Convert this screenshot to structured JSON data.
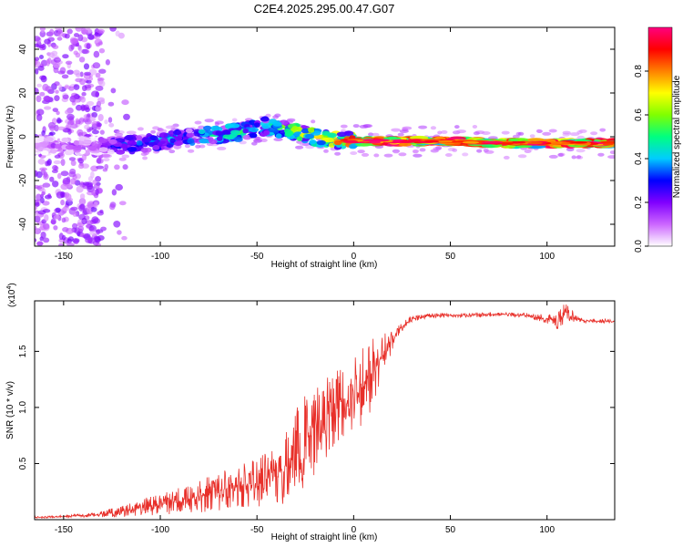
{
  "title": "C2E4.2025.295.00.47.G07",
  "chart_data": [
    {
      "type": "heatmap",
      "title": "C2E4.2025.295.00.47.G07",
      "xlabel": "Height of straight line (km)",
      "ylabel": "Frequency (Hz)",
      "xlim": [
        -165,
        135
      ],
      "ylim": [
        -50,
        50
      ],
      "xticks": [
        -150,
        -100,
        -50,
        0,
        50,
        100
      ],
      "yticks": [
        -40,
        -20,
        0,
        20,
        40
      ],
      "ridge": {
        "x": [
          -160,
          -140,
          -130,
          -120,
          -100,
          -80,
          -60,
          -45,
          -35,
          -25,
          -15,
          0,
          20,
          50,
          80,
          100,
          135
        ],
        "hz": [
          -4,
          -4,
          -4,
          -4,
          -2,
          0,
          2,
          5,
          3,
          1,
          -1,
          -2,
          -2,
          -2,
          -3,
          -3,
          -3
        ],
        "amplitude": [
          0.15,
          0.15,
          0.25,
          0.35,
          0.38,
          0.45,
          0.5,
          0.45,
          0.6,
          0.65,
          0.7,
          0.85,
          0.95,
          0.9,
          0.95,
          0.95,
          0.9
        ]
      },
      "colorbar": {
        "label": "Normalized spectral amplitude",
        "range": [
          0,
          1
        ],
        "ticks": [
          0.0,
          0.2,
          0.4,
          0.6,
          0.8
        ],
        "tick_labels": [
          "0.0",
          "0.2",
          "0.4",
          "0.6",
          "0.8"
        ],
        "colors": [
          "#ffffff",
          "#cc66ff",
          "#8000ff",
          "#0000ff",
          "#00ccff",
          "#00ff80",
          "#80ff00",
          "#ffff00",
          "#ff8000",
          "#ff0000",
          "#ff0080"
        ]
      }
    },
    {
      "type": "line",
      "xlabel": "Height of straight line (km)",
      "ylabel": "SNR (10 * v/v)",
      "y_scale_label": "(x10",
      "y_scale_exp": "4",
      "y_scale_close": ")",
      "xlim": [
        -165,
        135
      ],
      "ylim": [
        0,
        1.95
      ],
      "xticks": [
        -150,
        -100,
        -50,
        0,
        50,
        100
      ],
      "yticks": [
        0.5,
        1.0,
        1.5
      ],
      "ytick_labels": [
        "0.5",
        "1.0",
        "1.5"
      ],
      "color": "#e8302a",
      "series": [
        {
          "name": "SNR",
          "x": [
            -165,
            -150,
            -135,
            -125,
            -115,
            -105,
            -100,
            -90,
            -80,
            -70,
            -60,
            -50,
            -40,
            -35,
            -30,
            -25,
            -20,
            -15,
            -10,
            -5,
            0,
            5,
            10,
            15,
            20,
            25,
            30,
            40,
            50,
            60,
            70,
            80,
            90,
            100,
            105,
            110,
            115,
            120,
            135
          ],
          "y": [
            0.02,
            0.03,
            0.04,
            0.06,
            0.09,
            0.12,
            0.14,
            0.17,
            0.21,
            0.25,
            0.29,
            0.33,
            0.4,
            0.48,
            0.6,
            0.72,
            0.82,
            0.92,
            1.02,
            1.1,
            1.16,
            1.22,
            1.32,
            1.45,
            1.6,
            1.72,
            1.79,
            1.82,
            1.82,
            1.82,
            1.83,
            1.83,
            1.82,
            1.79,
            1.77,
            1.85,
            1.79,
            1.77,
            1.77
          ],
          "noise": [
            0.01,
            0.01,
            0.02,
            0.04,
            0.06,
            0.09,
            0.1,
            0.12,
            0.15,
            0.17,
            0.2,
            0.25,
            0.3,
            0.35,
            0.42,
            0.45,
            0.42,
            0.4,
            0.38,
            0.36,
            0.35,
            0.38,
            0.4,
            0.22,
            0.08,
            0.04,
            0.03,
            0.02,
            0.02,
            0.02,
            0.02,
            0.02,
            0.02,
            0.04,
            0.08,
            0.1,
            0.03,
            0.02,
            0.02
          ]
        }
      ]
    }
  ]
}
